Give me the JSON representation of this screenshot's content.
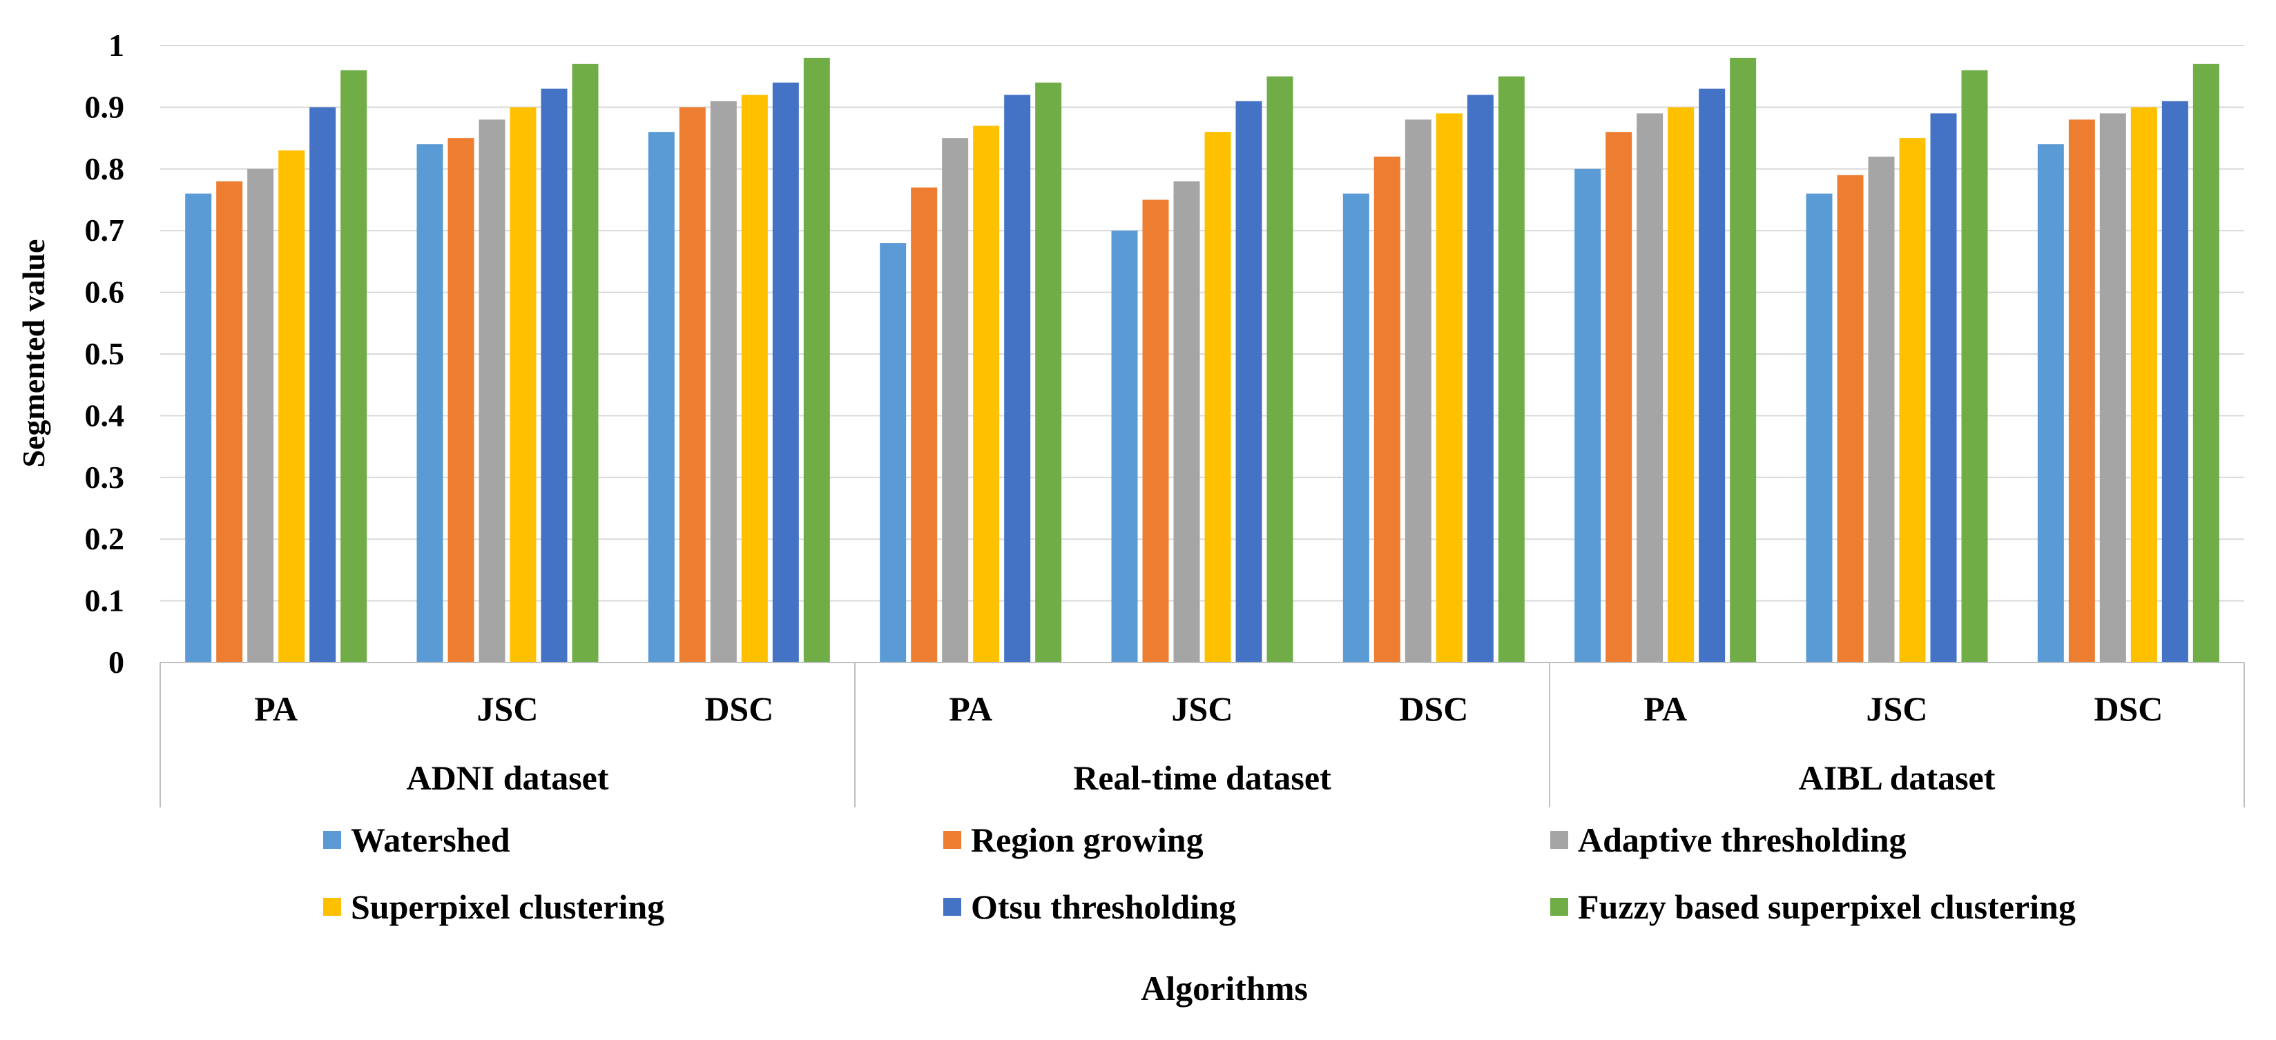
{
  "chart_data": {
    "type": "bar",
    "title": "",
    "ylabel": "Segmented value",
    "xlabel": "Algorithms",
    "ylim": [
      0,
      1
    ],
    "yticks": [
      "0",
      "0.1",
      "0.2",
      "0.3",
      "0.4",
      "0.5",
      "0.6",
      "0.7",
      "0.8",
      "0.9",
      "1"
    ],
    "grid": true,
    "legend_position": "bottom",
    "groups": [
      "ADNI dataset",
      "Real-time dataset",
      "AIBL dataset"
    ],
    "categories": [
      "PA",
      "JSC",
      "DSC",
      "PA",
      "JSC",
      "DSC",
      "PA",
      "JSC",
      "DSC"
    ],
    "series": [
      {
        "name": "Watershed",
        "color": "#5B9BD5",
        "values": [
          0.76,
          0.84,
          0.86,
          0.68,
          0.7,
          0.76,
          0.8,
          0.76,
          0.84
        ]
      },
      {
        "name": "Region growing",
        "color": "#ED7D31",
        "values": [
          0.78,
          0.85,
          0.9,
          0.77,
          0.75,
          0.82,
          0.86,
          0.79,
          0.88
        ]
      },
      {
        "name": "Adaptive thresholding",
        "color": "#A5A5A5",
        "values": [
          0.8,
          0.88,
          0.91,
          0.85,
          0.78,
          0.88,
          0.89,
          0.82,
          0.89
        ]
      },
      {
        "name": "Superpixel clustering",
        "color": "#FFC000",
        "values": [
          0.83,
          0.9,
          0.92,
          0.87,
          0.86,
          0.89,
          0.9,
          0.85,
          0.9
        ]
      },
      {
        "name": "Otsu thresholding",
        "color": "#4472C4",
        "values": [
          0.9,
          0.93,
          0.94,
          0.92,
          0.91,
          0.92,
          0.93,
          0.89,
          0.91
        ]
      },
      {
        "name": "Fuzzy based superpixel clustering",
        "color": "#70AD47",
        "values": [
          0.96,
          0.97,
          0.98,
          0.94,
          0.95,
          0.95,
          0.98,
          0.96,
          0.97
        ]
      }
    ]
  }
}
